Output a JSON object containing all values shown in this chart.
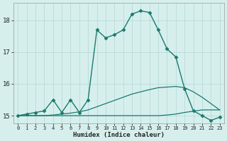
{
  "xlabel": "Humidex (Indice chaleur)",
  "background_color": "#d6efed",
  "grid_color": "#b8dbd8",
  "line_color": "#1a7a6e",
  "xlim": [
    -0.5,
    23.5
  ],
  "ylim": [
    14.75,
    18.55
  ],
  "yticks": [
    15,
    16,
    17,
    18
  ],
  "xticks": [
    0,
    1,
    2,
    3,
    4,
    5,
    6,
    7,
    8,
    9,
    10,
    11,
    12,
    13,
    14,
    15,
    16,
    17,
    18,
    19,
    20,
    21,
    22,
    23
  ],
  "series": [
    {
      "x": [
        0,
        1,
        2,
        3,
        4,
        5,
        6,
        7,
        8,
        9,
        10,
        11,
        12,
        13,
        14,
        15,
        16,
        17,
        18,
        19,
        20,
        21,
        22,
        23
      ],
      "y": [
        15.0,
        15.05,
        15.1,
        15.15,
        15.5,
        15.1,
        15.5,
        15.1,
        15.5,
        17.7,
        17.45,
        17.55,
        17.7,
        18.2,
        18.3,
        18.25,
        17.7,
        17.1,
        16.85,
        15.85,
        15.15,
        15.0,
        14.85,
        14.95
      ],
      "marker": "D",
      "markersize": 2.5,
      "linewidth": 1.0,
      "has_marker": true
    },
    {
      "x": [
        0,
        1,
        2,
        3,
        4,
        5,
        6,
        7,
        8,
        9,
        10,
        11,
        12,
        13,
        14,
        15,
        16,
        17,
        18,
        19,
        20,
        21,
        22,
        23
      ],
      "y": [
        15.0,
        15.0,
        15.0,
        15.0,
        15.02,
        15.05,
        15.08,
        15.12,
        15.18,
        15.28,
        15.38,
        15.48,
        15.58,
        15.68,
        15.75,
        15.82,
        15.88,
        15.9,
        15.92,
        15.88,
        15.75,
        15.58,
        15.38,
        15.18
      ],
      "marker": null,
      "markersize": 0,
      "linewidth": 0.9,
      "has_marker": false
    },
    {
      "x": [
        0,
        1,
        2,
        3,
        4,
        5,
        6,
        7,
        8,
        9,
        10,
        11,
        12,
        13,
        14,
        15,
        16,
        17,
        18,
        19,
        20,
        21,
        22,
        23
      ],
      "y": [
        15.0,
        15.0,
        15.0,
        15.0,
        15.0,
        15.0,
        15.0,
        15.0,
        15.0,
        15.0,
        15.0,
        15.0,
        15.0,
        15.0,
        15.0,
        15.0,
        15.0,
        15.02,
        15.05,
        15.1,
        15.14,
        15.18,
        15.18,
        15.18
      ],
      "marker": null,
      "markersize": 0,
      "linewidth": 0.9,
      "has_marker": false
    }
  ]
}
